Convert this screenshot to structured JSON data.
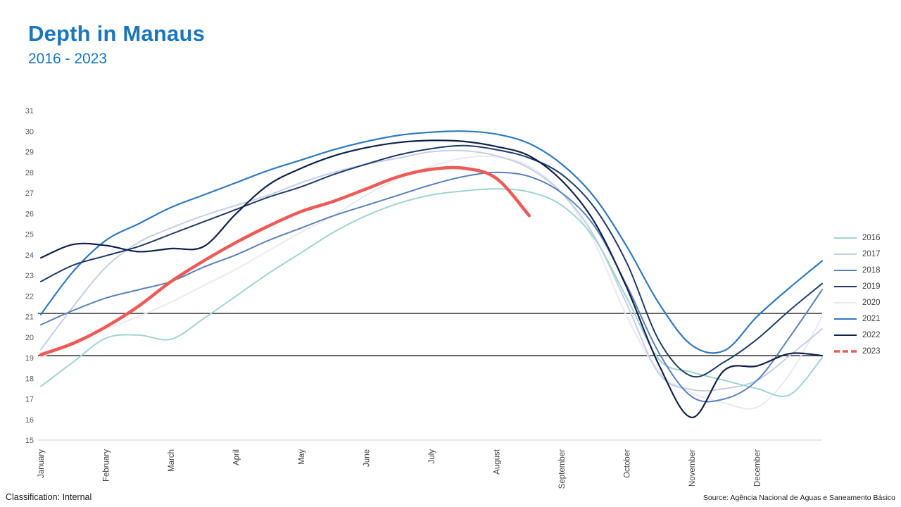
{
  "header": {
    "title": "Depth in Manaus",
    "subtitle": "2016 - 2023",
    "title_color": "#1b76bc"
  },
  "footer": {
    "classification": "Classification: Internal",
    "source": "Source: Agência Nacional de Águas e Saneamento Básico"
  },
  "chart_data": {
    "type": "line",
    "title": "Depth in Manaus",
    "subtitle": "2016 - 2023",
    "xlabel": "",
    "ylabel": "",
    "grid": false,
    "legend_position": "right",
    "x_months": [
      "January",
      "February",
      "March",
      "April",
      "May",
      "June",
      "July",
      "August",
      "September",
      "October",
      "November",
      "December"
    ],
    "x_sampling": "half-month steps, t = 0 (Jan 1) to 12 (Dec 31)",
    "ylim": [
      15,
      31
    ],
    "y_tick_step": 1,
    "axis_text_color": "#595959",
    "x_label_color": "#404040",
    "baseline_color": "#d2d2d2",
    "reference_lines": {
      "color": "#3f3f3f",
      "values": [
        21.15,
        19.1
      ]
    },
    "series": [
      {
        "name": "2016",
        "color": "#9fd4cf",
        "width": 2,
        "dashed": false,
        "values": [
          17.6,
          18.8,
          19.95,
          20.1,
          19.9,
          20.9,
          22.0,
          23.1,
          24.1,
          25.1,
          25.9,
          26.5,
          26.9,
          27.1,
          27.2,
          27.05,
          26.4,
          24.8,
          21.9,
          18.9,
          18.3,
          17.9,
          17.5,
          17.2,
          19.0
        ]
      },
      {
        "name": "2017",
        "color": "#c5cee6",
        "width": 2,
        "dashed": false,
        "values": [
          19.4,
          21.5,
          23.4,
          24.6,
          25.3,
          25.9,
          26.4,
          26.9,
          27.5,
          28.0,
          28.4,
          28.7,
          29.0,
          29.05,
          28.8,
          28.2,
          27.0,
          24.9,
          21.6,
          18.2,
          17.45,
          17.5,
          17.9,
          19.1,
          20.4
        ]
      },
      {
        "name": "2018",
        "color": "#5b80b8",
        "width": 2,
        "dashed": false,
        "values": [
          20.6,
          21.3,
          21.9,
          22.3,
          22.7,
          23.4,
          24.0,
          24.7,
          25.3,
          25.9,
          26.4,
          26.9,
          27.4,
          27.8,
          28.0,
          27.8,
          27.0,
          25.4,
          22.5,
          19.2,
          17.1,
          17.0,
          17.9,
          20.0,
          22.3
        ]
      },
      {
        "name": "2019",
        "color": "#1f3b66",
        "width": 2,
        "dashed": false,
        "values": [
          22.7,
          23.5,
          23.95,
          24.4,
          25.0,
          25.6,
          26.2,
          26.8,
          27.3,
          27.9,
          28.4,
          28.85,
          29.15,
          29.3,
          29.1,
          28.7,
          27.9,
          26.3,
          23.6,
          19.8,
          18.1,
          18.8,
          19.9,
          21.3,
          22.6
        ]
      },
      {
        "name": "2020",
        "color": "#e9eaf2",
        "width": 2,
        "dashed": false,
        "values": [
          19.0,
          19.8,
          20.4,
          21.0,
          21.7,
          22.5,
          23.3,
          24.2,
          25.1,
          25.9,
          26.9,
          27.7,
          28.3,
          28.7,
          28.75,
          28.3,
          27.0,
          24.6,
          21.0,
          18.3,
          17.3,
          16.8,
          16.6,
          18.2,
          21.0
        ]
      },
      {
        "name": "2021",
        "color": "#2e79bd",
        "width": 2.2,
        "dashed": false,
        "values": [
          21.1,
          23.2,
          24.7,
          25.5,
          26.3,
          26.9,
          27.5,
          28.1,
          28.6,
          29.1,
          29.5,
          29.8,
          29.95,
          30.0,
          29.85,
          29.4,
          28.4,
          26.8,
          24.4,
          21.6,
          19.6,
          19.35,
          21.0,
          22.4,
          23.7
        ]
      },
      {
        "name": "2022",
        "color": "#10214a",
        "width": 2.2,
        "dashed": false,
        "values": [
          23.85,
          24.5,
          24.45,
          24.15,
          24.3,
          24.4,
          26.0,
          27.4,
          28.2,
          28.8,
          29.2,
          29.45,
          29.55,
          29.5,
          29.25,
          28.8,
          27.6,
          25.6,
          22.4,
          18.6,
          16.1,
          18.4,
          18.6,
          19.2,
          19.1
        ]
      },
      {
        "name": "2023",
        "color": "#ee5a56",
        "width": 4.5,
        "dashed": true,
        "values": [
          19.15,
          19.7,
          20.5,
          21.5,
          22.7,
          23.7,
          24.6,
          25.4,
          26.1,
          26.6,
          27.2,
          27.8,
          28.15,
          28.2,
          27.7,
          25.9
        ]
      }
    ]
  }
}
